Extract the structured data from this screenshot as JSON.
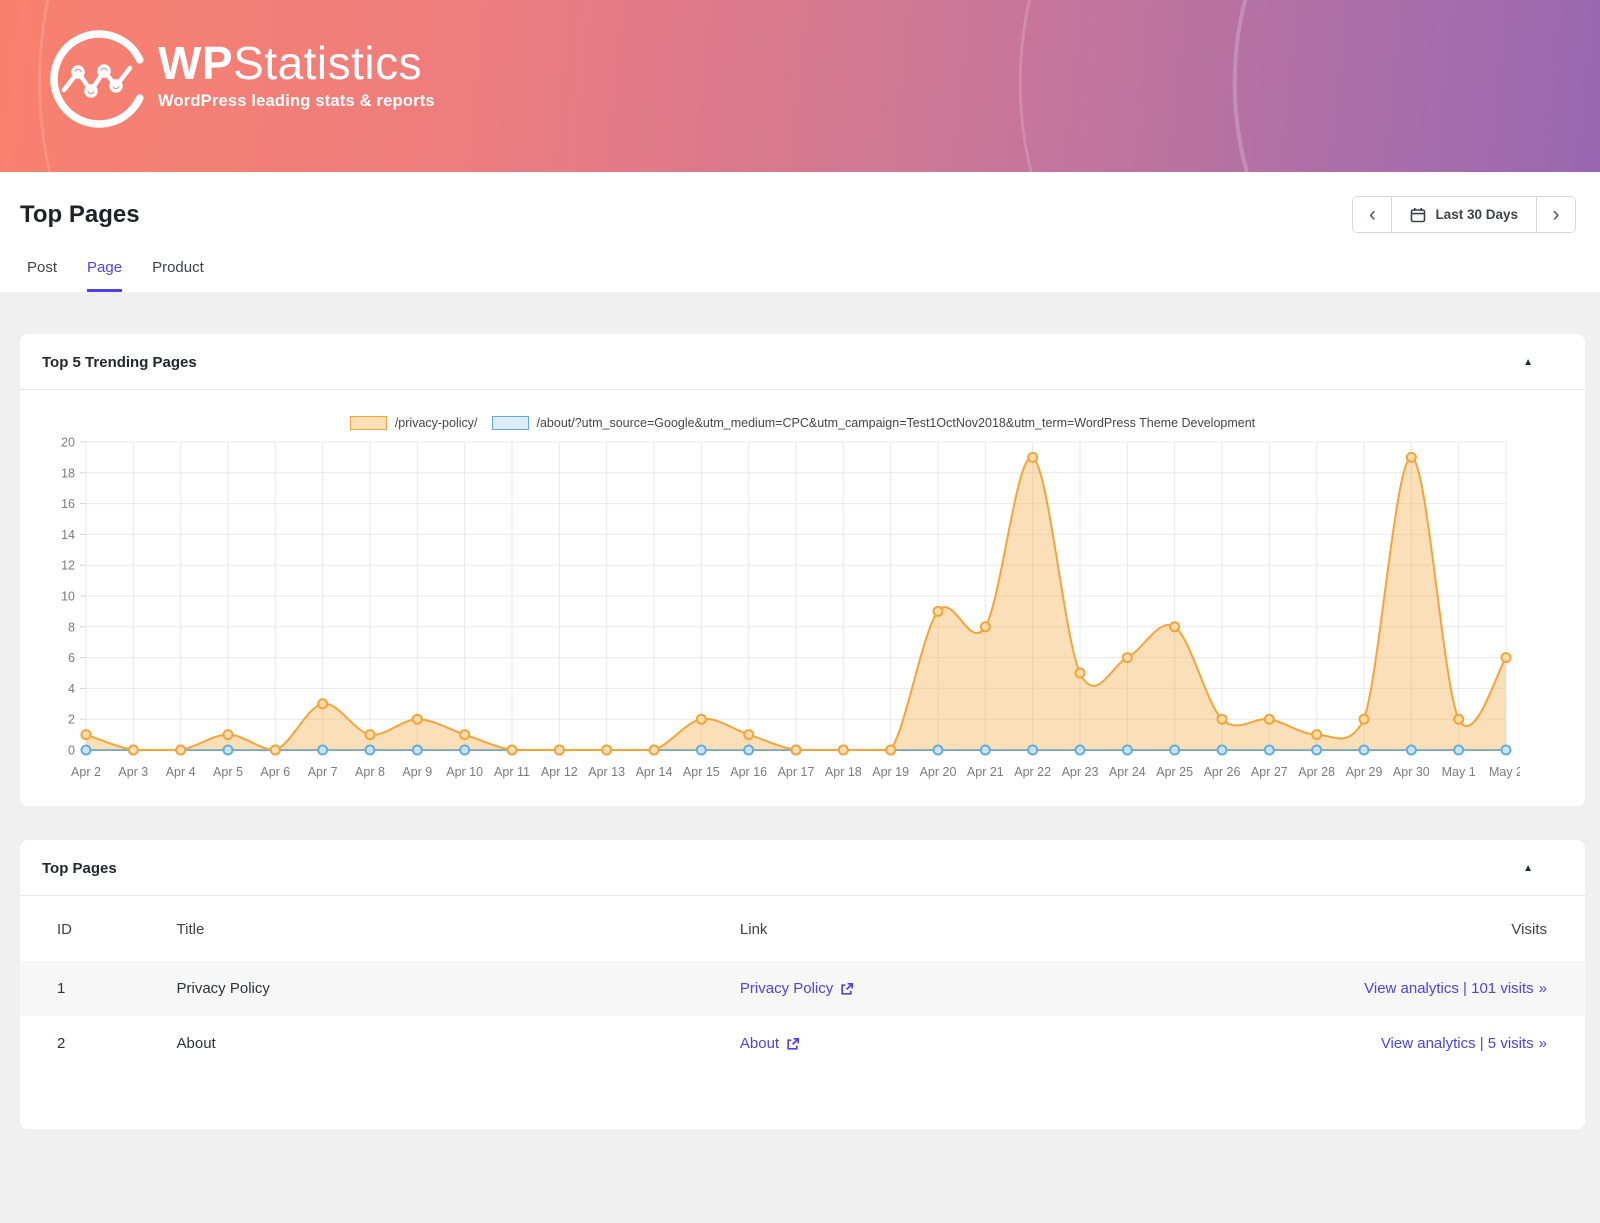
{
  "header": {
    "brand_name_bold": "WP",
    "brand_name_rest": "Statistics",
    "brand_tagline": "WordPress leading stats & reports"
  },
  "toolbar": {
    "title": "Top Pages",
    "tabs": {
      "post": "Post",
      "page": "Page",
      "product": "Product"
    },
    "date_range": {
      "prev": "‹",
      "label": "Last 30 Days",
      "next": "›"
    }
  },
  "trending_panel": {
    "title": "Top 5 Trending Pages",
    "collapse_icon": "▲"
  },
  "chart_data": {
    "type": "area",
    "x": [
      "Apr 2",
      "Apr 3",
      "Apr 4",
      "Apr 5",
      "Apr 6",
      "Apr 7",
      "Apr 8",
      "Apr 9",
      "Apr 10",
      "Apr 11",
      "Apr 12",
      "Apr 13",
      "Apr 14",
      "Apr 15",
      "Apr 16",
      "Apr 17",
      "Apr 18",
      "Apr 19",
      "Apr 20",
      "Apr 21",
      "Apr 22",
      "Apr 23",
      "Apr 24",
      "Apr 25",
      "Apr 26",
      "Apr 27",
      "Apr 28",
      "Apr 29",
      "Apr 30",
      "May 1",
      "May 2"
    ],
    "series": [
      {
        "name": "/about/?utm_source=Google&utm_medium=CPC&utm_campaign=Test1OctNov2018&utm_term=WordPress Theme Development",
        "color": "#67abde",
        "fill": "rgba(190,222,245,0.55)",
        "point_fill": "#c9e4f6",
        "values": [
          0,
          0,
          0,
          0,
          0,
          0,
          0,
          0,
          0,
          0,
          0,
          0,
          0,
          0,
          0,
          0,
          0,
          0,
          0,
          0,
          0,
          0,
          0,
          0,
          0,
          0,
          0,
          0,
          0,
          0,
          0
        ]
      },
      {
        "name": "/privacy-policy/",
        "color": "#f5a43c",
        "fill": "rgba(246,178,86,0.42)",
        "point_fill": "#fbdfae",
        "values": [
          1,
          0,
          0,
          1,
          0,
          3,
          1,
          2,
          1,
          0,
          0,
          0,
          0,
          2,
          1,
          0,
          0,
          0,
          9,
          8,
          19,
          5,
          6,
          8,
          2,
          2,
          1,
          2,
          19,
          2,
          6
        ]
      }
    ],
    "legend_order": [
      1,
      0
    ],
    "title": "",
    "xlabel": "",
    "ylabel": "",
    "ylim": [
      0,
      20
    ],
    "ytick_step": 2,
    "grid": true,
    "legend_position": "top",
    "axis_text_color": "#7b7b7b",
    "grid_color": "#e8e8e8"
  },
  "table_panel": {
    "title": "Top Pages",
    "collapse_icon": "▲",
    "columns": [
      "ID",
      "Title",
      "Link",
      "Visits"
    ],
    "rows": [
      {
        "id": "1",
        "title": "Privacy Policy",
        "link_text": "Privacy Policy",
        "visits_text": "View analytics | 101 visits",
        "visits_arrow": "»"
      },
      {
        "id": "2",
        "title": "About",
        "link_text": "About",
        "visits_text": "View analytics | 5 visits",
        "visits_arrow": "»"
      }
    ]
  },
  "colors": {
    "accent": "#4a45e1",
    "banner_left": "#f8816e",
    "banner_right": "#9868b2"
  }
}
